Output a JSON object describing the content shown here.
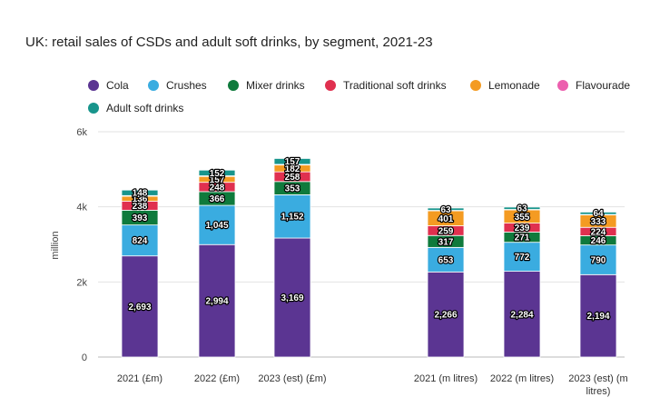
{
  "title": "UK: retail sales of CSDs and adult soft drinks, by segment, 2021-23",
  "chart_data": {
    "type": "bar",
    "stacked": true,
    "title": "UK: retail sales of CSDs and adult soft drinks, by segment, 2021-23",
    "xlabel": "",
    "ylabel": "million",
    "ylim": [
      0,
      6000
    ],
    "yticks": [
      0,
      2000,
      4000,
      6000
    ],
    "ytick_labels": [
      "0",
      "2k",
      "4k",
      "6k"
    ],
    "grid": true,
    "legend_position": "top",
    "categories": [
      "2021 (£m)",
      "2022 (£m)",
      "2023 (est) (£m)",
      "2021 (m litres)",
      "2022 (m litres)",
      "2023 (est) (m litres)"
    ],
    "category_lines": [
      [
        "2021 (£m)"
      ],
      [
        "2022 (£m)"
      ],
      [
        "2023 (est) (£m)"
      ],
      [
        "2021 (m litres)"
      ],
      [
        "2022 (m litres)"
      ],
      [
        "2023 (est) (m",
        "litres)"
      ]
    ],
    "series": [
      {
        "name": "Cola",
        "color": "#5b3592",
        "values": [
          2693,
          2994,
          3169,
          2266,
          2284,
          2194
        ]
      },
      {
        "name": "Crushes",
        "color": "#3aace0",
        "values": [
          824,
          1045,
          1152,
          653,
          772,
          790
        ]
      },
      {
        "name": "Mixer drinks",
        "color": "#0f7a3c",
        "values": [
          393,
          366,
          353,
          317,
          271,
          246
        ]
      },
      {
        "name": "Traditional soft drinks",
        "color": "#e0304f",
        "values": [
          238,
          248,
          258,
          259,
          239,
          224
        ]
      },
      {
        "name": "Lemonade",
        "color": "#f49b22",
        "values": [
          136,
          157,
          182,
          401,
          355,
          333
        ]
      },
      {
        "name": "Flavourade",
        "color": "#ec5fae",
        "values": [
          15,
          16,
          17,
          10,
          10,
          10
        ]
      },
      {
        "name": "Adult soft drinks",
        "color": "#18958c",
        "values": [
          148,
          152,
          157,
          63,
          63,
          64
        ]
      }
    ]
  }
}
